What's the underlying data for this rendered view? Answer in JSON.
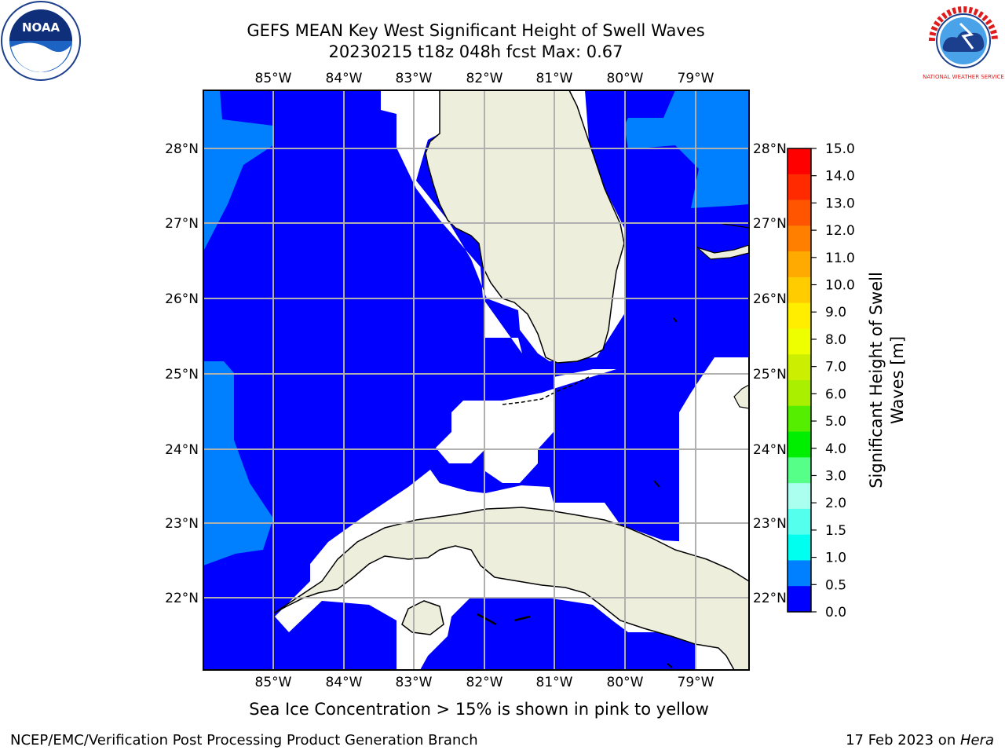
{
  "header": {
    "title_line1": "GEFS MEAN Key West Significant Height of Swell Waves",
    "title_line2": "20230215 t18z 048h fcst   Max: 0.67"
  },
  "logos": {
    "left": {
      "name": "noaa-logo-icon",
      "text": "NOAA"
    },
    "right": {
      "name": "nws-logo-icon",
      "text": "NATIONAL WEATHER SERVICE"
    }
  },
  "map": {
    "lon_labels": [
      "85°W",
      "84°W",
      "83°W",
      "82°W",
      "81°W",
      "80°W",
      "79°W"
    ],
    "lat_labels": [
      "28°N",
      "27°N",
      "26°N",
      "25°N",
      "24°N",
      "23°N",
      "22°N"
    ],
    "colors": {
      "ocean_low": "#0000ff",
      "ocean_mid": "#007fff",
      "land": "#eeeedd",
      "grid": "#b0b0b0"
    }
  },
  "colorbar": {
    "label_line1": "Significant Height of Swell",
    "label_line2": "Waves [m]",
    "ticks": [
      "15.0",
      "14.0",
      "13.0",
      "12.0",
      "11.0",
      "10.0",
      "9.0",
      "8.0",
      "7.0",
      "6.0",
      "5.0",
      "4.0",
      "3.0",
      "2.0",
      "1.5",
      "1.0",
      "0.5",
      "0.0"
    ],
    "colors_top_to_bottom": [
      "#ff0000",
      "#ff2a00",
      "#ff5500",
      "#ff8000",
      "#ffaa00",
      "#ffcc00",
      "#ffee00",
      "#eeff00",
      "#ccee00",
      "#aaee00",
      "#55ee00",
      "#00ee00",
      "#55ff88",
      "#aaffee",
      "#55ffee",
      "#00ffee",
      "#0080ff",
      "#0000ff"
    ]
  },
  "footer": {
    "note": "Sea Ice Concentration > 15% is shown in pink to yellow",
    "credit": "NCEP/EMC/Verification Post Processing Product Generation Branch",
    "date": "17 Feb 2023 on ",
    "host": "Hera"
  }
}
